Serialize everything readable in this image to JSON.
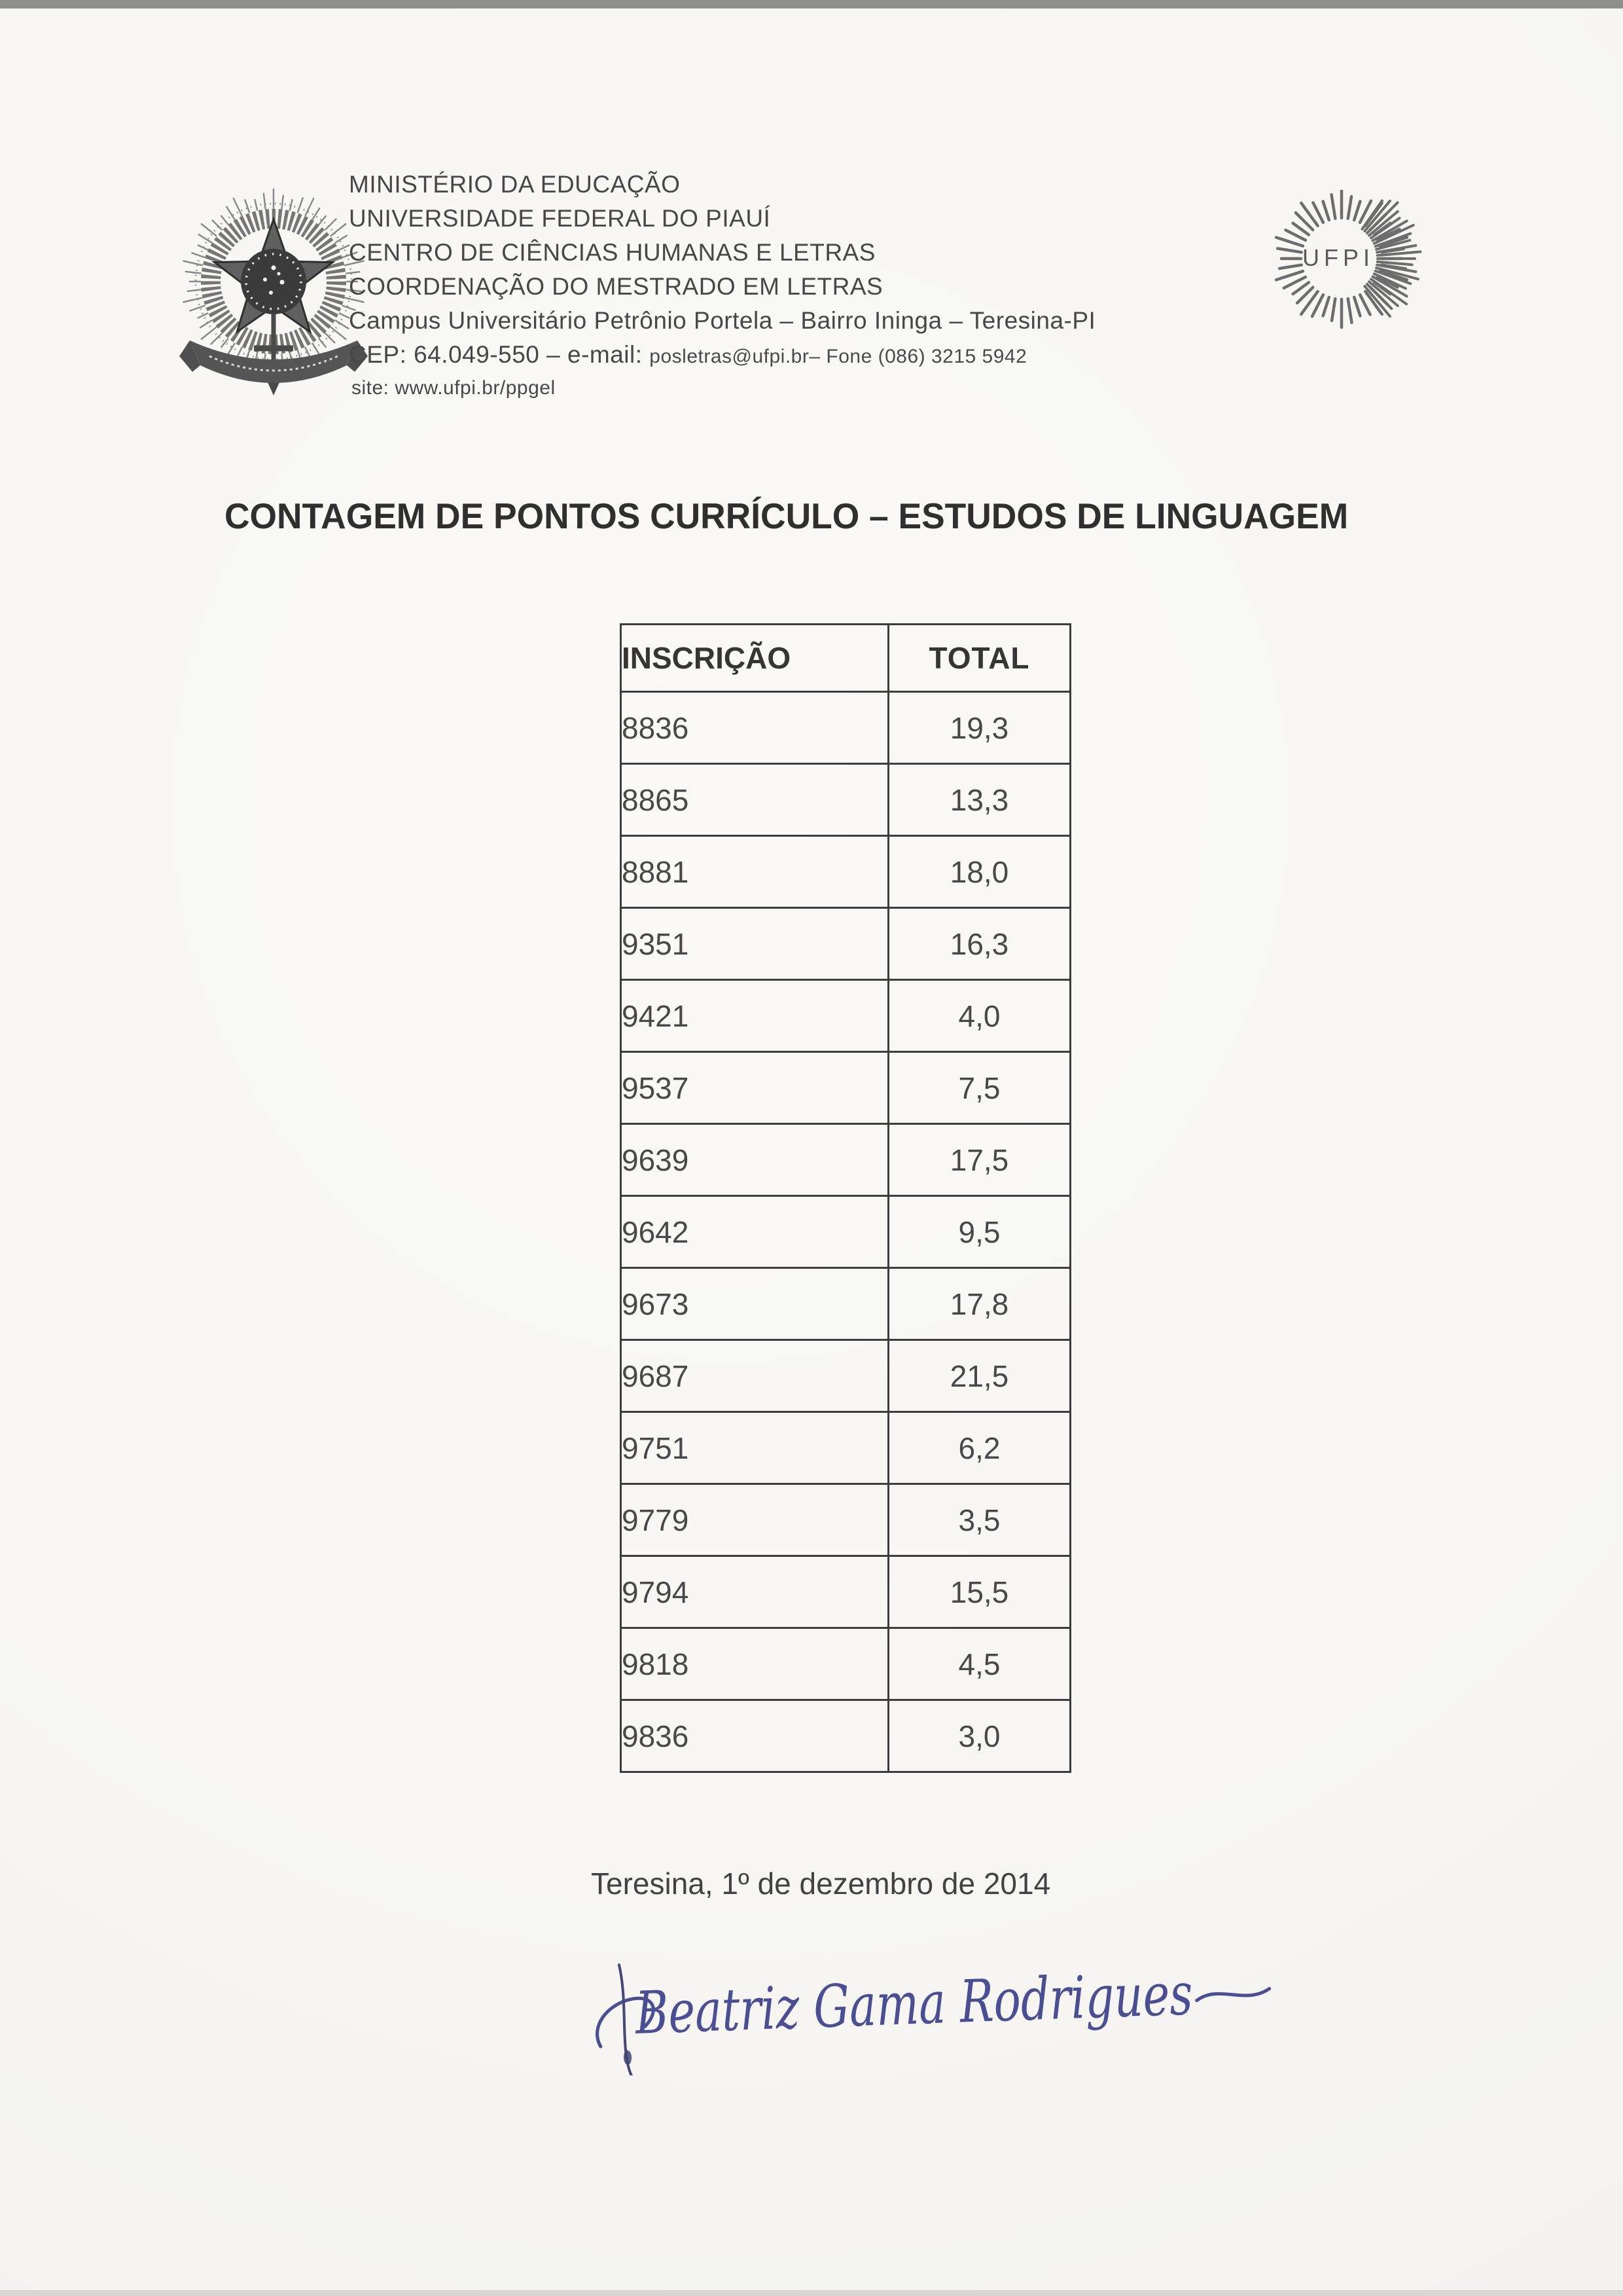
{
  "page": {
    "paper_color": "#f7f6f3",
    "scan_edge_color": "#8f8f8d"
  },
  "header": {
    "lines": [
      "MINISTÉRIO DA EDUCAÇÃO",
      "UNIVERSIDADE FEDERAL DO PIAUÍ",
      "CENTRO DE CIÊNCIAS HUMANAS E LETRAS",
      "COORDENAÇÃO DO MESTRADO EM LETRAS",
      "Campus Universitário Petrônio Portela – Bairro Ininga – Teresina-PI"
    ],
    "cep_prefix": "CEP: 64.049-550 – e-mail:",
    "cep_contact": "posletras@ufpi.br– Fone (086) 3215 5942",
    "site_line": "site: www.ufpi.br/ppgel",
    "logo_text": "UFPI"
  },
  "title": "CONTAGEM DE PONTOS CURRÍCULO – ESTUDOS DE LINGUAGEM",
  "table": {
    "columns": [
      "INSCRIÇÃO",
      "TOTAL"
    ],
    "rows": [
      {
        "inscricao": "8836",
        "total": "19,3"
      },
      {
        "inscricao": "8865",
        "total": "13,3"
      },
      {
        "inscricao": "8881",
        "total": "18,0"
      },
      {
        "inscricao": "9351",
        "total": "16,3"
      },
      {
        "inscricao": "9421",
        "total": "4,0"
      },
      {
        "inscricao": "9537",
        "total": "7,5"
      },
      {
        "inscricao": "9639",
        "total": "17,5"
      },
      {
        "inscricao": "9642",
        "total": "9,5"
      },
      {
        "inscricao": "9673",
        "total": "17,8"
      },
      {
        "inscricao": "9687",
        "total": "21,5"
      },
      {
        "inscricao": "9751",
        "total": "6,2"
      },
      {
        "inscricao": "9779",
        "total": "3,5"
      },
      {
        "inscricao": "9794",
        "total": "15,5"
      },
      {
        "inscricao": "9818",
        "total": "4,5"
      },
      {
        "inscricao": "9836",
        "total": "3,0"
      }
    ]
  },
  "footer": {
    "date_line": "Teresina, 1º de dezembro de 2014",
    "signature_name": "Beatriz Gama Rodrigues"
  }
}
